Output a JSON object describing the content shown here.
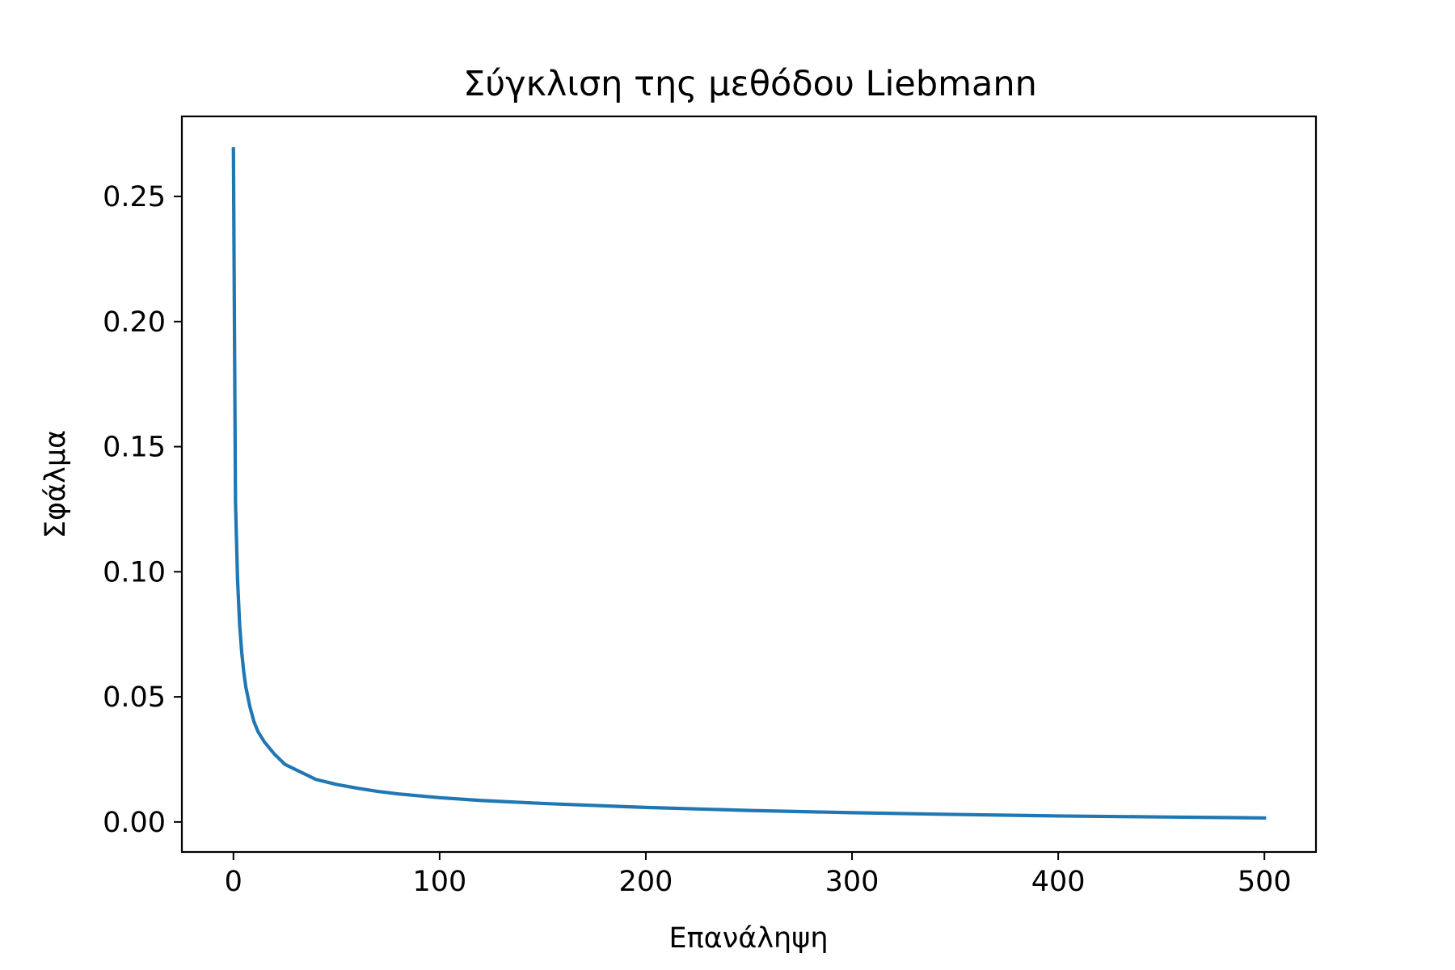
{
  "chart_data": {
    "type": "line",
    "title": "Σύγκλιση της μεθόδου Liebmann",
    "xlabel": "Επανάληψη",
    "ylabel": "Σφάλμα",
    "xlim": [
      -25,
      525
    ],
    "ylim": [
      -0.012,
      0.282
    ],
    "xticks": [
      0,
      100,
      200,
      300,
      400,
      500
    ],
    "xtick_labels": [
      "0",
      "100",
      "200",
      "300",
      "400",
      "500"
    ],
    "yticks": [
      0.0,
      0.05,
      0.1,
      0.15,
      0.2,
      0.25
    ],
    "ytick_labels": [
      "0.00",
      "0.05",
      "0.10",
      "0.15",
      "0.20",
      "0.25"
    ],
    "grid": false,
    "legend": "none",
    "series": [
      {
        "color": "#1f77b4",
        "x": [
          0,
          1,
          2,
          3,
          4,
          5,
          6,
          8,
          10,
          12,
          15,
          20,
          25,
          30,
          40,
          50,
          60,
          70,
          80,
          100,
          120,
          150,
          175,
          200,
          250,
          300,
          350,
          400,
          450,
          500
        ],
        "y": [
          0.269,
          0.128,
          0.097,
          0.079,
          0.068,
          0.06,
          0.054,
          0.046,
          0.04,
          0.036,
          0.032,
          0.027,
          0.023,
          0.021,
          0.017,
          0.015,
          0.0135,
          0.0122,
          0.0112,
          0.0097,
          0.0086,
          0.0074,
          0.0066,
          0.0058,
          0.0046,
          0.0037,
          0.003,
          0.0024,
          0.002,
          0.0016
        ]
      }
    ]
  }
}
